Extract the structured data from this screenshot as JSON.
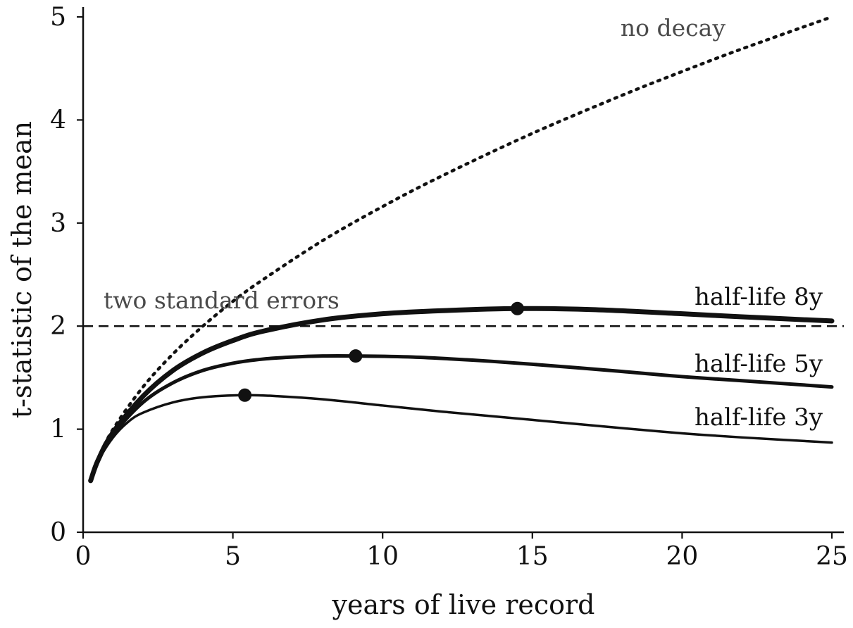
{
  "chart_data": {
    "type": "line",
    "title": "",
    "xlabel": "years of live record",
    "ylabel": "t-statistic of the mean",
    "xlim": [
      0,
      25
    ],
    "ylim": [
      0,
      5
    ],
    "xticks": [
      0,
      5,
      10,
      15,
      20,
      25
    ],
    "yticks": [
      0,
      1,
      2,
      3,
      4,
      5
    ],
    "grid": false,
    "reference_line": {
      "y": 2,
      "label": "two standard errors",
      "style": "dashed"
    },
    "series": [
      {
        "name": "no decay",
        "style": "dotted",
        "x": [
          0.25,
          0.5,
          1,
          2,
          3,
          4,
          5,
          6,
          8,
          10,
          12,
          15,
          18,
          20,
          22,
          25
        ],
        "y": [
          0.5,
          0.71,
          1.0,
          1.41,
          1.73,
          2.0,
          2.24,
          2.45,
          2.83,
          3.16,
          3.46,
          3.87,
          4.24,
          4.47,
          4.69,
          5.0
        ]
      },
      {
        "name": "half-life 8y",
        "style": "solid-thick",
        "x": [
          0.25,
          0.5,
          1,
          2,
          3,
          4,
          5,
          6,
          8,
          10,
          12,
          14.5,
          17,
          20,
          22,
          25
        ],
        "y": [
          0.5,
          0.7,
          0.97,
          1.32,
          1.57,
          1.74,
          1.86,
          1.95,
          2.06,
          2.12,
          2.15,
          2.17,
          2.16,
          2.12,
          2.09,
          2.05
        ]
      },
      {
        "name": "half-life 5y",
        "style": "solid-medium",
        "x": [
          0.25,
          0.5,
          1,
          2,
          3,
          4,
          5,
          6,
          7,
          8,
          9.1,
          11,
          13,
          15,
          18,
          20,
          22,
          25
        ],
        "y": [
          0.5,
          0.7,
          0.95,
          1.26,
          1.45,
          1.57,
          1.64,
          1.68,
          1.7,
          1.71,
          1.71,
          1.7,
          1.67,
          1.63,
          1.56,
          1.51,
          1.47,
          1.41
        ]
      },
      {
        "name": "half-life 3y",
        "style": "solid-thin",
        "x": [
          0.25,
          0.5,
          1,
          1.5,
          2,
          3,
          4,
          5.4,
          6.5,
          8,
          10,
          12,
          15,
          18,
          20,
          22,
          25
        ],
        "y": [
          0.5,
          0.69,
          0.92,
          1.07,
          1.16,
          1.26,
          1.31,
          1.33,
          1.32,
          1.29,
          1.23,
          1.17,
          1.09,
          1.01,
          0.96,
          0.92,
          0.87
        ]
      }
    ],
    "peaks": [
      {
        "series": "half-life 8y",
        "x": 14.5,
        "y": 2.17
      },
      {
        "series": "half-life 5y",
        "x": 9.1,
        "y": 1.71
      },
      {
        "series": "half-life 3y",
        "x": 5.4,
        "y": 1.33
      }
    ]
  }
}
